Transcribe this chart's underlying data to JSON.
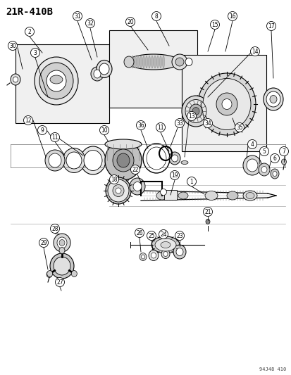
{
  "title": "21R-410B",
  "watermark": "94J48 410",
  "bg_color": "#ffffff",
  "fg_color": "#000000",
  "fig_width": 4.14,
  "fig_height": 5.33,
  "dpi": 100
}
